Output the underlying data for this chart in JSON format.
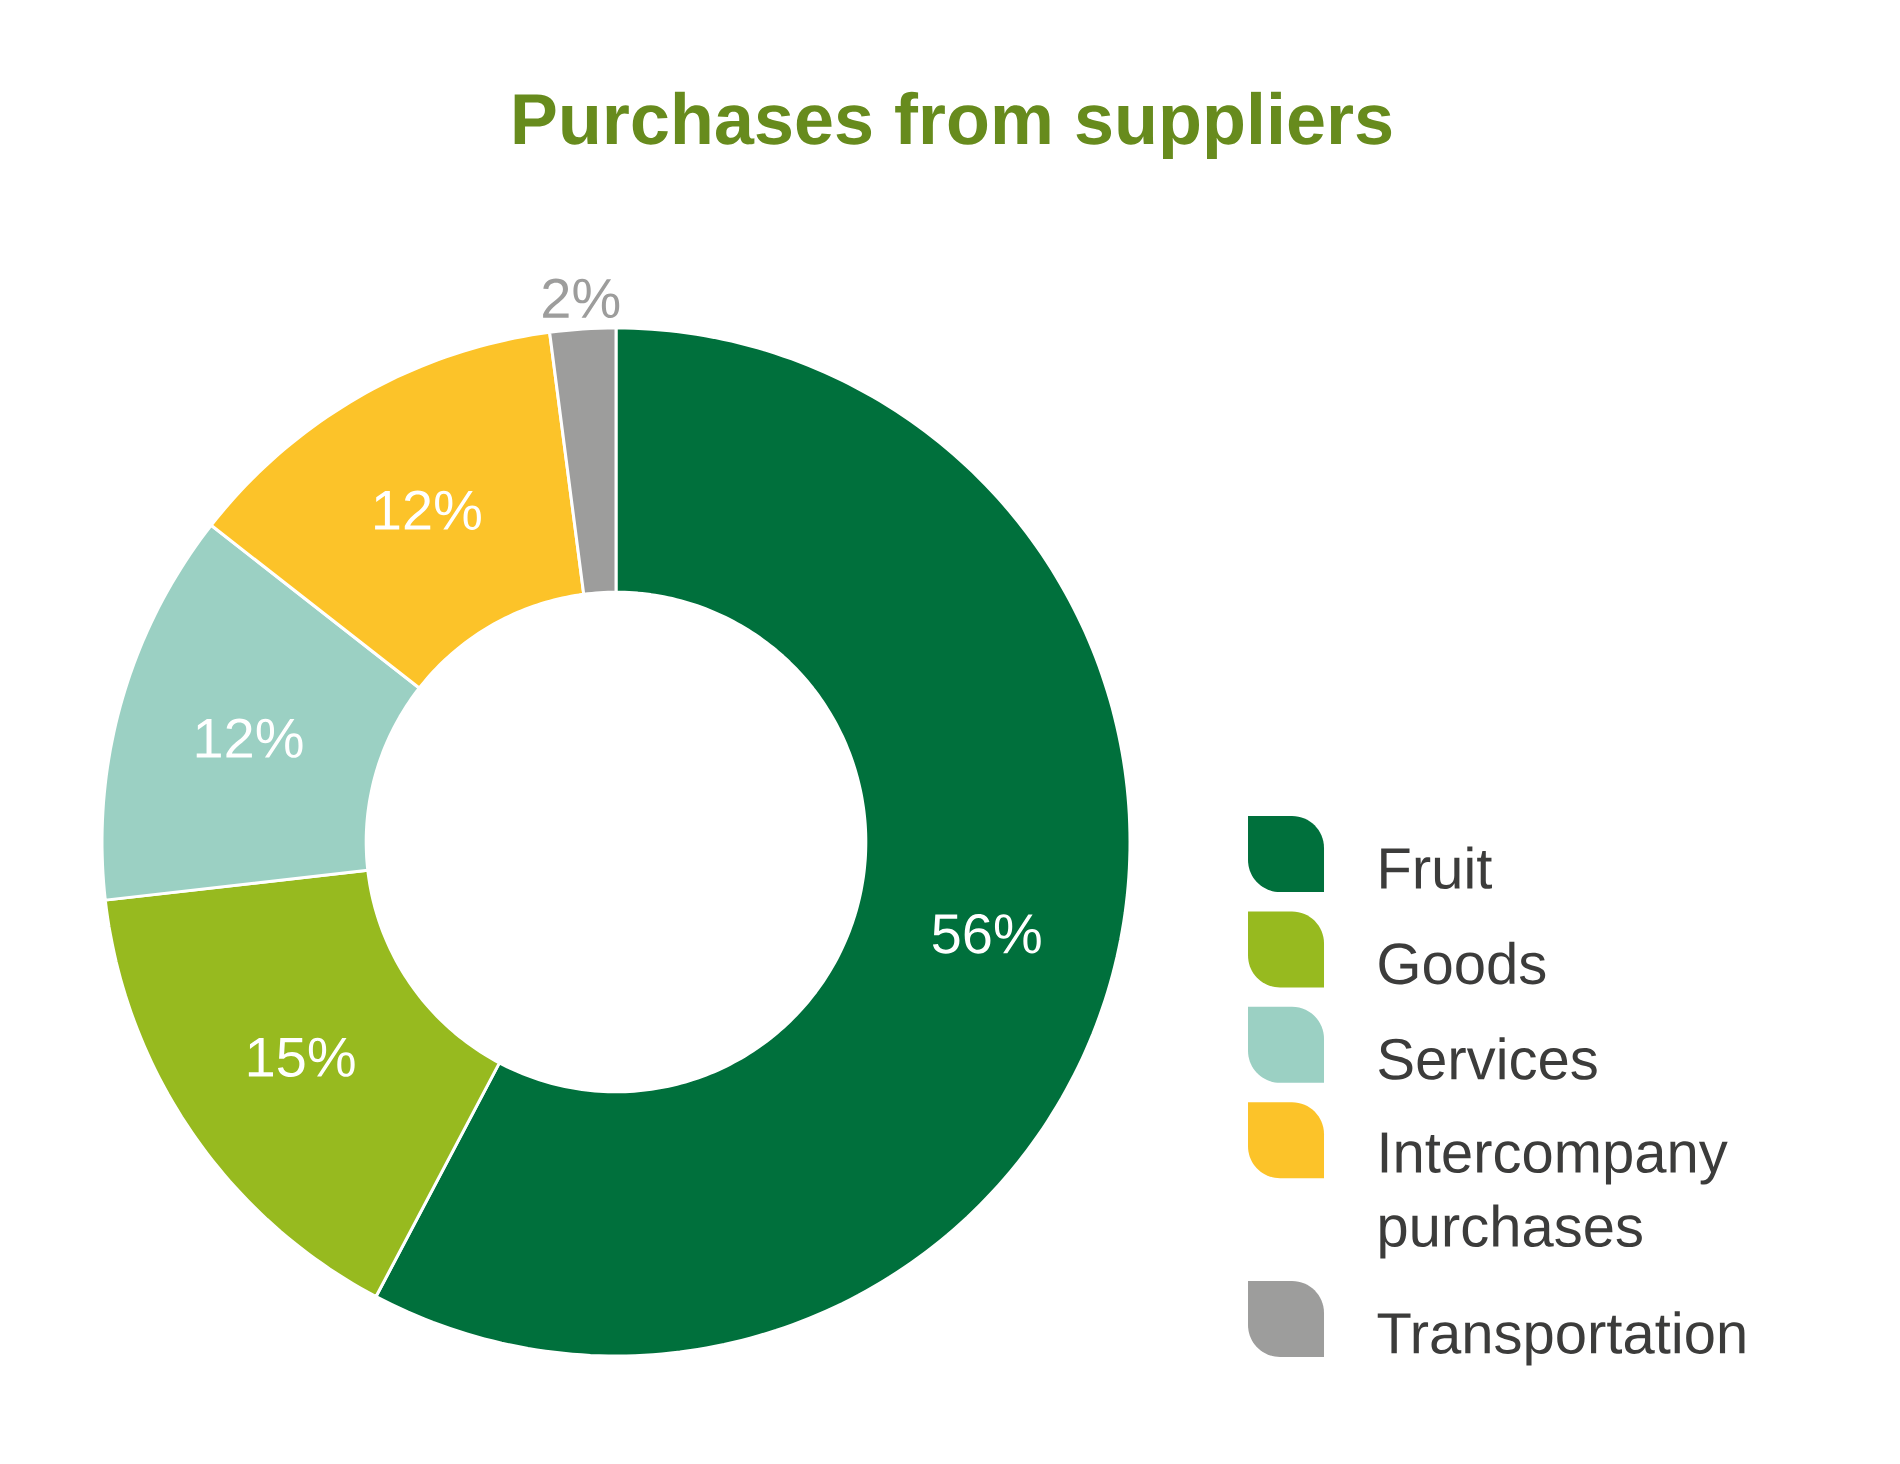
{
  "chart_data": {
    "type": "donut",
    "title": "Purchases from suppliers",
    "categories": [
      "Fruit",
      "Goods",
      "Services",
      "Intercompany purchases",
      "Transportation"
    ],
    "values": [
      56,
      15,
      12,
      12,
      2
    ],
    "colors": [
      "#00703c",
      "#97ba1f",
      "#9bd0c3",
      "#fcc329",
      "#9d9d9c"
    ],
    "value_labels": [
      "56%",
      "15%",
      "12%",
      "12%",
      "2%"
    ],
    "legend": "right"
  }
}
